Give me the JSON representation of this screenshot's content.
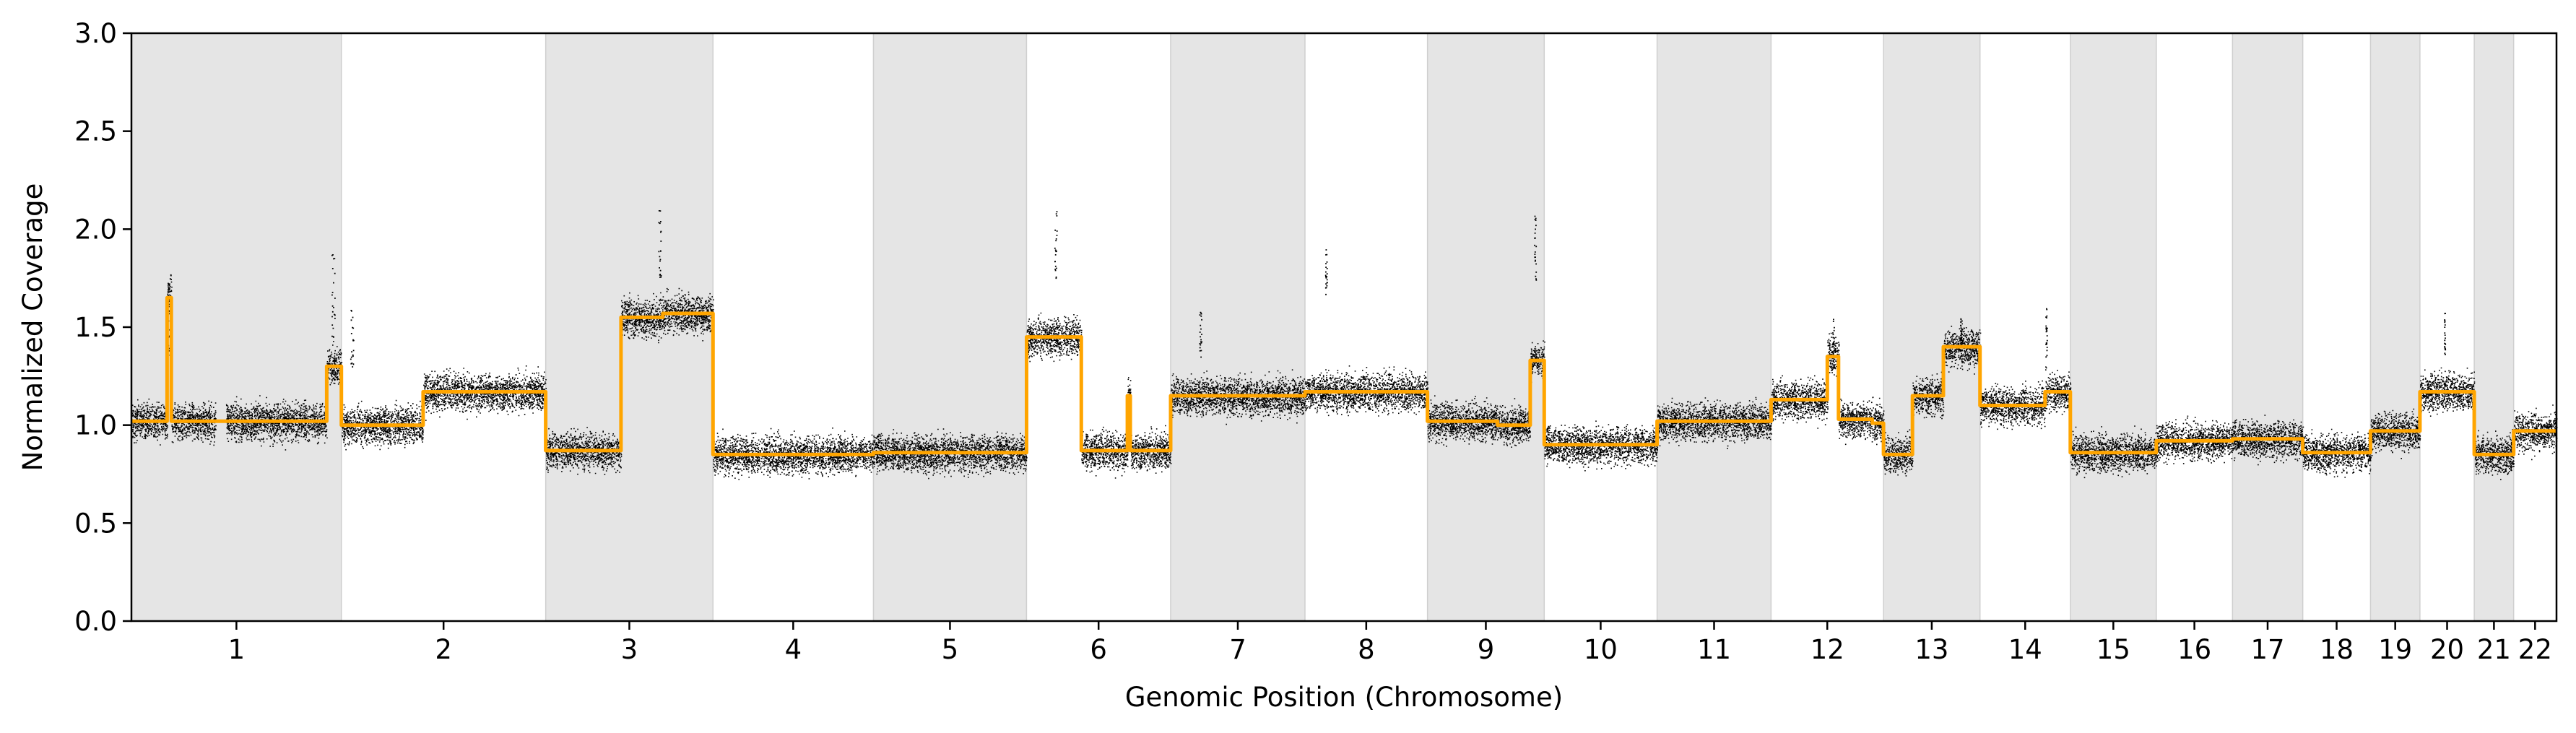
{
  "chart_data": {
    "type": "scatter",
    "xlabel": "Genomic Position (Chromosome)",
    "ylabel": "Normalized Coverage",
    "ylim": [
      0.0,
      3.0
    ],
    "yticks": [
      0.0,
      0.5,
      1.0,
      1.5,
      2.0,
      2.5,
      3.0
    ],
    "ytick_labels": [
      "0.0",
      "0.5",
      "1.0",
      "1.5",
      "2.0",
      "2.5",
      "3.0"
    ],
    "grid": false,
    "alternating_band_color": "#e5e5e5",
    "point_color": "#000000",
    "segment_line_color": "#ffa500",
    "chromosomes": [
      {
        "name": "1",
        "start": 0,
        "end": 2489,
        "shaded": true
      },
      {
        "name": "2",
        "start": 2489,
        "end": 4911,
        "shaded": false
      },
      {
        "name": "3",
        "start": 4911,
        "end": 6894,
        "shaded": true
      },
      {
        "name": "4",
        "start": 6894,
        "end": 8796,
        "shaded": false
      },
      {
        "name": "5",
        "start": 8796,
        "end": 10611,
        "shaded": true
      },
      {
        "name": "6",
        "start": 10611,
        "end": 12319,
        "shaded": false
      },
      {
        "name": "7",
        "start": 12319,
        "end": 13912,
        "shaded": true
      },
      {
        "name": "8",
        "start": 13912,
        "end": 15364,
        "shaded": false
      },
      {
        "name": "9",
        "start": 15364,
        "end": 16748,
        "shaded": true
      },
      {
        "name": "10",
        "start": 16748,
        "end": 18086,
        "shaded": false
      },
      {
        "name": "11",
        "start": 18086,
        "end": 19437,
        "shaded": true
      },
      {
        "name": "12",
        "start": 19437,
        "end": 20770,
        "shaded": false
      },
      {
        "name": "13",
        "start": 20770,
        "end": 21914,
        "shaded": true
      },
      {
        "name": "14",
        "start": 21914,
        "end": 22985,
        "shaded": false
      },
      {
        "name": "15",
        "start": 22985,
        "end": 24004,
        "shaded": true
      },
      {
        "name": "16",
        "start": 24004,
        "end": 24907,
        "shaded": false
      },
      {
        "name": "17",
        "start": 24907,
        "end": 25740,
        "shaded": true
      },
      {
        "name": "18",
        "start": 25740,
        "end": 26543,
        "shaded": false
      },
      {
        "name": "19",
        "start": 26543,
        "end": 27129,
        "shaded": true
      },
      {
        "name": "20",
        "start": 27129,
        "end": 27773,
        "shaded": false
      },
      {
        "name": "21",
        "start": 27773,
        "end": 28240,
        "shaded": true
      },
      {
        "name": "22",
        "start": 28240,
        "end": 28748,
        "shaded": false
      }
    ],
    "segments": [
      {
        "chrom": "1",
        "from": 0.0,
        "to": 0.17,
        "value": 1.02
      },
      {
        "chrom": "1",
        "from": 0.17,
        "to": 0.19,
        "value": 1.65
      },
      {
        "chrom": "1",
        "from": 0.19,
        "to": 0.93,
        "value": 1.02
      },
      {
        "chrom": "1",
        "from": 0.93,
        "to": 1.0,
        "value": 1.3
      },
      {
        "chrom": "2",
        "from": 0.0,
        "to": 0.4,
        "value": 1.0
      },
      {
        "chrom": "2",
        "from": 0.4,
        "to": 1.0,
        "value": 1.17
      },
      {
        "chrom": "3",
        "from": 0.0,
        "to": 0.45,
        "value": 0.87
      },
      {
        "chrom": "3",
        "from": 0.45,
        "to": 0.7,
        "value": 1.55
      },
      {
        "chrom": "3",
        "from": 0.7,
        "to": 1.0,
        "value": 1.57
      },
      {
        "chrom": "4",
        "from": 0.0,
        "to": 1.0,
        "value": 0.85
      },
      {
        "chrom": "5",
        "from": 0.0,
        "to": 1.0,
        "value": 0.86
      },
      {
        "chrom": "6",
        "from": 0.0,
        "to": 0.38,
        "value": 1.45
      },
      {
        "chrom": "6",
        "from": 0.38,
        "to": 0.7,
        "value": 0.87
      },
      {
        "chrom": "6",
        "from": 0.7,
        "to": 0.72,
        "value": 1.15
      },
      {
        "chrom": "6",
        "from": 0.72,
        "to": 1.0,
        "value": 0.87
      },
      {
        "chrom": "7",
        "from": 0.0,
        "to": 1.0,
        "value": 1.15
      },
      {
        "chrom": "8",
        "from": 0.0,
        "to": 1.0,
        "value": 1.17
      },
      {
        "chrom": "9",
        "from": 0.0,
        "to": 0.5,
        "value": 1.02
      },
      {
        "chrom": "9",
        "from": 0.5,
        "to": 0.6,
        "value": 1.02
      },
      {
        "chrom": "9",
        "from": 0.6,
        "to": 0.88,
        "value": 1.0
      },
      {
        "chrom": "9",
        "from": 0.88,
        "to": 1.0,
        "value": 1.33
      },
      {
        "chrom": "10",
        "from": 0.0,
        "to": 1.0,
        "value": 0.9
      },
      {
        "chrom": "11",
        "from": 0.0,
        "to": 1.0,
        "value": 1.02
      },
      {
        "chrom": "12",
        "from": 0.0,
        "to": 0.5,
        "value": 1.13
      },
      {
        "chrom": "12",
        "from": 0.5,
        "to": 0.6,
        "value": 1.35
      },
      {
        "chrom": "12",
        "from": 0.6,
        "to": 0.9,
        "value": 1.03
      },
      {
        "chrom": "12",
        "from": 0.9,
        "to": 1.0,
        "value": 1.01
      },
      {
        "chrom": "13",
        "from": 0.0,
        "to": 0.3,
        "value": 0.85
      },
      {
        "chrom": "13",
        "from": 0.3,
        "to": 0.62,
        "value": 1.15
      },
      {
        "chrom": "13",
        "from": 0.62,
        "to": 0.66,
        "value": 1.4
      },
      {
        "chrom": "13",
        "from": 0.66,
        "to": 1.0,
        "value": 1.4
      },
      {
        "chrom": "14",
        "from": 0.0,
        "to": 0.72,
        "value": 1.1
      },
      {
        "chrom": "14",
        "from": 0.72,
        "to": 1.0,
        "value": 1.17
      },
      {
        "chrom": "15",
        "from": 0.0,
        "to": 1.0,
        "value": 0.86
      },
      {
        "chrom": "16",
        "from": 0.0,
        "to": 1.0,
        "value": 0.92
      },
      {
        "chrom": "17",
        "from": 0.0,
        "to": 1.0,
        "value": 0.93
      },
      {
        "chrom": "18",
        "from": 0.0,
        "to": 1.0,
        "value": 0.86
      },
      {
        "chrom": "19",
        "from": 0.0,
        "to": 1.0,
        "value": 0.97
      },
      {
        "chrom": "20",
        "from": 0.0,
        "to": 1.0,
        "value": 1.17
      },
      {
        "chrom": "21",
        "from": 0.0,
        "to": 0.45,
        "value": 0.85
      },
      {
        "chrom": "21",
        "from": 0.45,
        "to": 1.0,
        "value": 0.85
      },
      {
        "chrom": "22",
        "from": 0.0,
        "to": 1.0,
        "value": 0.97
      }
    ],
    "outlier_clusters": [
      {
        "chrom": "1",
        "at": 0.18,
        "low": 1.35,
        "high": 1.78
      },
      {
        "chrom": "1",
        "at": 0.96,
        "low": 1.4,
        "high": 1.88
      },
      {
        "chrom": "2",
        "at": 0.05,
        "low": 1.3,
        "high": 1.62
      },
      {
        "chrom": "3",
        "at": 0.68,
        "low": 1.75,
        "high": 2.1
      },
      {
        "chrom": "6",
        "at": 0.2,
        "low": 1.75,
        "high": 2.1
      },
      {
        "chrom": "7",
        "at": 0.22,
        "low": 1.35,
        "high": 1.58
      },
      {
        "chrom": "8",
        "at": 0.17,
        "low": 1.65,
        "high": 1.9
      },
      {
        "chrom": "9",
        "at": 0.92,
        "low": 1.7,
        "high": 2.1
      },
      {
        "chrom": "12",
        "at": 0.55,
        "low": 1.3,
        "high": 1.55
      },
      {
        "chrom": "13",
        "at": 0.8,
        "low": 1.4,
        "high": 1.55
      },
      {
        "chrom": "14",
        "at": 0.73,
        "low": 1.35,
        "high": 1.62
      },
      {
        "chrom": "20",
        "at": 0.45,
        "low": 1.35,
        "high": 1.58
      }
    ],
    "approx_points_per_chromosome_unit": 1.3
  }
}
